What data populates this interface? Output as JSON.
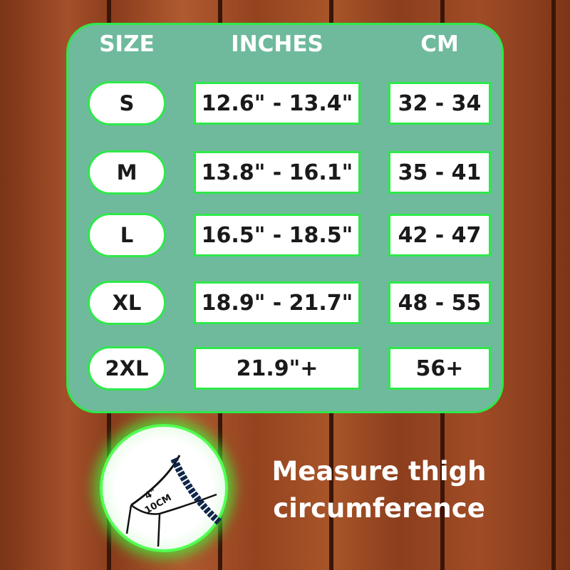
{
  "headers": {
    "size": "SIZE",
    "inches": "INCHES",
    "cm": "CM"
  },
  "rows": [
    {
      "size": "S",
      "inches": "12.6\" - 13.4\"",
      "cm": "32 - 34"
    },
    {
      "size": "M",
      "inches": "13.8\" - 16.1\"",
      "cm": "35 - 41"
    },
    {
      "size": "L",
      "inches": "16.5\" - 18.5\"",
      "cm": "42 - 47"
    },
    {
      "size": "XL",
      "inches": "18.9\" - 21.7\"",
      "cm": "48 - 55"
    },
    {
      "size": "2XL",
      "inches": "21.9\"+",
      "cm": "56+"
    }
  ],
  "illustration": {
    "label_in": "4\"",
    "label_cm": "10CM"
  },
  "caption": {
    "line1": "Measure thigh",
    "line2": "circumference"
  },
  "colors": {
    "panel": "#6fba9c",
    "accent": "#2ee84a"
  }
}
